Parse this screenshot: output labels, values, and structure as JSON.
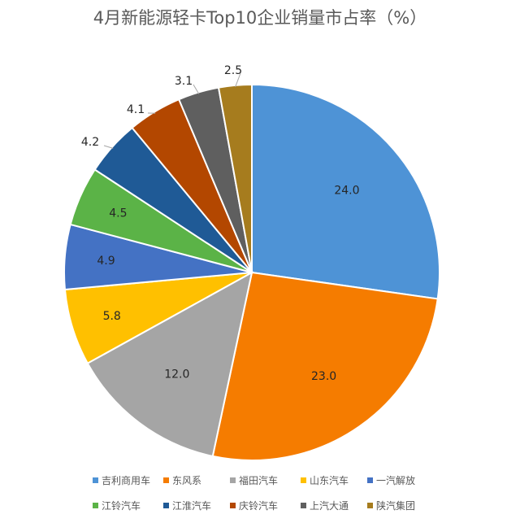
{
  "chart_data": {
    "type": "pie",
    "title": "4月新能源轻卡Top10企业销量市占率（%）",
    "categories": [
      "吉利商用车",
      "东风系",
      "福田汽车",
      "山东汽车",
      "一汽解放",
      "江铃汽车",
      "江淮汽车",
      "庆铃汽车",
      "上汽大通",
      "陕汽集团"
    ],
    "values": [
      24.0,
      23.0,
      12.0,
      5.8,
      4.9,
      4.5,
      4.2,
      4.1,
      3.1,
      2.5
    ],
    "value_labels": [
      "24.0",
      "23.0",
      "12.0",
      "5.8",
      "4.9",
      "4.5",
      "4.2",
      "4.1",
      "3.1",
      "2.5"
    ],
    "colors": [
      "#4e93d6",
      "#f57c00",
      "#a5a5a5",
      "#ffc000",
      "#4472c4",
      "#5bb347",
      "#1f5a96",
      "#b34700",
      "#5f5f5f",
      "#a67c1e"
    ],
    "legend": "bottom",
    "start_angle": "12 o'clock",
    "direction": "clockwise"
  }
}
